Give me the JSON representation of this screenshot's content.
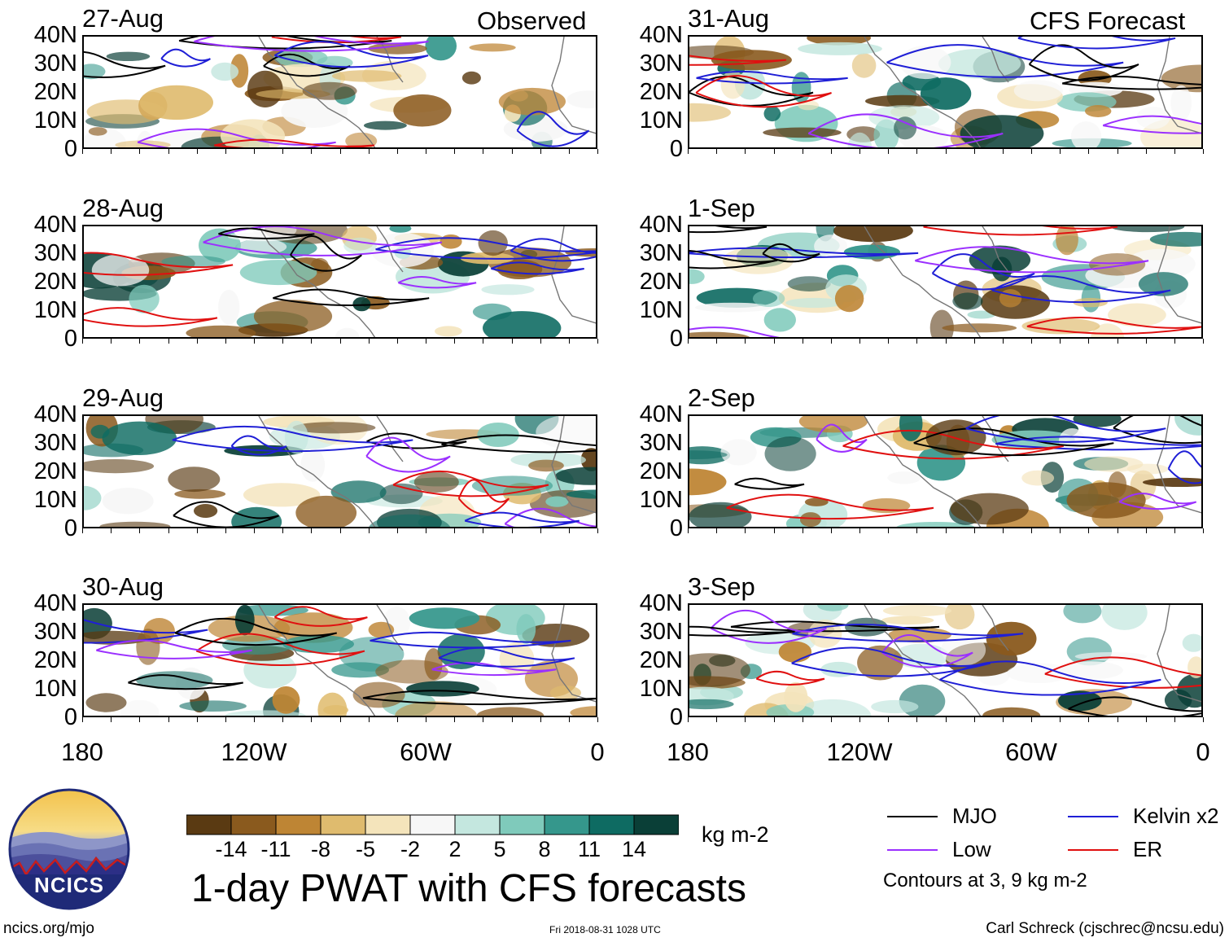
{
  "left_column": {
    "label": "Observed"
  },
  "right_column": {
    "label": "CFS Forecast"
  },
  "panels": [
    {
      "date": "27-Aug",
      "column": "left"
    },
    {
      "date": "28-Aug",
      "column": "left"
    },
    {
      "date": "29-Aug",
      "column": "left"
    },
    {
      "date": "30-Aug",
      "column": "left"
    },
    {
      "date": "31-Aug",
      "column": "right"
    },
    {
      "date": "1-Sep",
      "column": "right"
    },
    {
      "date": "2-Sep",
      "column": "right"
    },
    {
      "date": "3-Sep",
      "column": "right"
    }
  ],
  "latitude_labels": [
    "40N",
    "30N",
    "20N",
    "10N",
    "0"
  ],
  "longitude_labels": [
    "180",
    "120W",
    "60W",
    "0"
  ],
  "colorbar": {
    "units": "kg m-2",
    "ticks": [
      "-14",
      "-11",
      "-8",
      "-5",
      "-2",
      "2",
      "5",
      "8",
      "11",
      "14"
    ],
    "colors": [
      "#5a3a12",
      "#8a5a1e",
      "#be8534",
      "#dfbb6e",
      "#f4e4bb",
      "#f7f7f7",
      "#c4e7df",
      "#7fcabb",
      "#35978c",
      "#0e6b62",
      "#0a3f37"
    ]
  },
  "title": "1-day PWAT with CFS forecasts",
  "legend": {
    "items": [
      {
        "label": "MJO",
        "color": "#000000"
      },
      {
        "label": "Kelvin x2",
        "color": "#1f1fd6"
      },
      {
        "label": "Low",
        "color": "#9b30ff"
      },
      {
        "label": "ER",
        "color": "#e01010"
      }
    ],
    "note": "Contours at 3, 9 kg m-2"
  },
  "logo": {
    "text": "NCICS"
  },
  "footer": {
    "url": "ncics.org/mjo",
    "timestamp": "Fri 2018-08-31 1028 UTC",
    "author": "Carl Schreck (cjschrec@ncsu.edu)"
  }
}
